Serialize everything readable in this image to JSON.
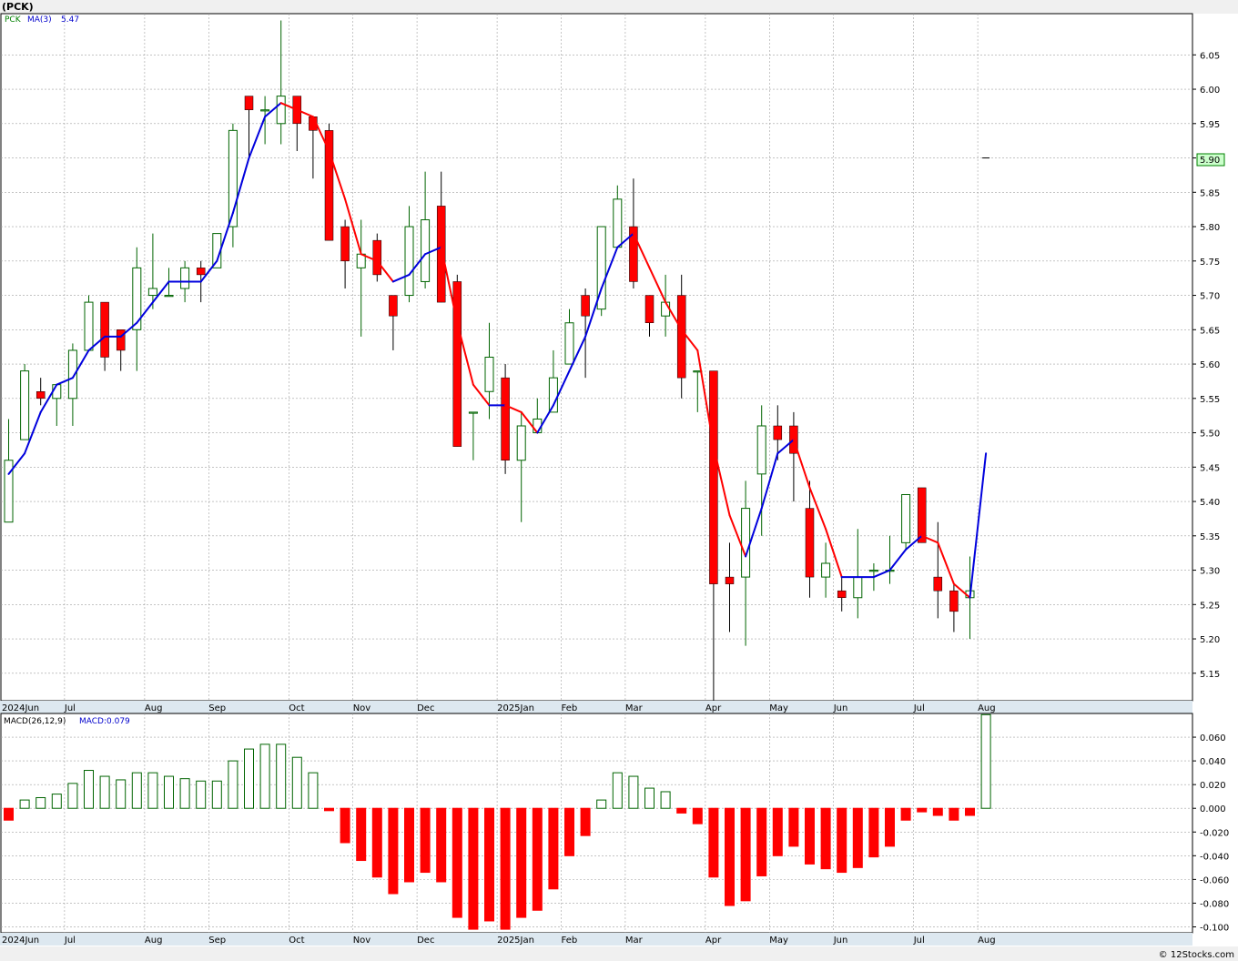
{
  "title": "(PCK)",
  "legend": {
    "symbol": "PCK",
    "ma_label": "MA(3)",
    "ma_value": "5.47",
    "macd_label": "MACD(26,12,9)",
    "macd_value": "MACD:0.079"
  },
  "current_price_label": "5.90",
  "copyright": "© 12Stocks.com",
  "colors": {
    "up_candle": "#ffffff",
    "up_wick": "#006400",
    "down_candle": "#ff0000",
    "ma_up": "#0000dd",
    "ma_down": "#ff0000",
    "grid": "#a0a0a0",
    "price_tag_bg": "#ccffcc"
  },
  "chart_data": [
    {
      "type": "candlestick",
      "name": "price",
      "ylim": [
        5.11,
        6.11
      ],
      "y_ticks": [
        5.15,
        5.2,
        5.25,
        5.3,
        5.35,
        5.4,
        5.45,
        5.5,
        5.55,
        5.6,
        5.65,
        5.7,
        5.75,
        5.8,
        5.85,
        5.9,
        5.95,
        6.0,
        6.05
      ],
      "x_labels": [
        "2024Jun",
        "Jul",
        "Aug",
        "Sep",
        "Oct",
        "Nov",
        "Dec",
        "2025Jan",
        "Feb",
        "Mar",
        "Apr",
        "May",
        "Jun",
        "Jul",
        "Aug"
      ],
      "x_label_week_index": [
        0,
        4,
        9,
        13,
        18,
        22,
        26,
        31,
        35,
        39,
        44,
        48,
        52,
        57,
        61
      ],
      "grid": true,
      "ohlc": [
        [
          5.37,
          5.52,
          5.37,
          5.46
        ],
        [
          5.49,
          5.6,
          5.49,
          5.59
        ],
        [
          5.56,
          5.58,
          5.54,
          5.55
        ],
        [
          5.55,
          5.57,
          5.51,
          5.57
        ],
        [
          5.55,
          5.63,
          5.51,
          5.62
        ],
        [
          5.62,
          5.7,
          5.62,
          5.69
        ],
        [
          5.69,
          5.69,
          5.59,
          5.61
        ],
        [
          5.65,
          5.65,
          5.59,
          5.62
        ],
        [
          5.65,
          5.77,
          5.59,
          5.74
        ],
        [
          5.7,
          5.79,
          5.68,
          5.71
        ],
        [
          5.7,
          5.74,
          5.7,
          5.7
        ],
        [
          5.71,
          5.75,
          5.69,
          5.74
        ],
        [
          5.74,
          5.75,
          5.69,
          5.73
        ],
        [
          5.74,
          5.79,
          5.74,
          5.79
        ],
        [
          5.8,
          5.95,
          5.77,
          5.94
        ],
        [
          5.99,
          5.99,
          5.9,
          5.97
        ],
        [
          5.97,
          5.99,
          5.92,
          5.97
        ],
        [
          5.95,
          6.1,
          5.92,
          5.99
        ],
        [
          5.99,
          5.99,
          5.91,
          5.95
        ],
        [
          5.96,
          5.96,
          5.87,
          5.94
        ],
        [
          5.94,
          5.95,
          5.78,
          5.78
        ],
        [
          5.8,
          5.81,
          5.71,
          5.75
        ],
        [
          5.74,
          5.81,
          5.64,
          5.76
        ],
        [
          5.78,
          5.79,
          5.72,
          5.73
        ],
        [
          5.7,
          5.7,
          5.62,
          5.67
        ],
        [
          5.7,
          5.83,
          5.69,
          5.8
        ],
        [
          5.72,
          5.88,
          5.71,
          5.81
        ],
        [
          5.83,
          5.88,
          5.69,
          5.69
        ],
        [
          5.72,
          5.73,
          5.48,
          5.48
        ],
        [
          5.53,
          5.53,
          5.46,
          5.53
        ],
        [
          5.56,
          5.66,
          5.52,
          5.61
        ],
        [
          5.58,
          5.6,
          5.44,
          5.46
        ],
        [
          5.46,
          5.53,
          5.37,
          5.51
        ],
        [
          5.5,
          5.55,
          5.5,
          5.52
        ],
        [
          5.53,
          5.62,
          5.53,
          5.58
        ],
        [
          5.6,
          5.68,
          5.6,
          5.66
        ],
        [
          5.7,
          5.71,
          5.58,
          5.67
        ],
        [
          5.68,
          5.8,
          5.67,
          5.8
        ],
        [
          5.77,
          5.86,
          5.77,
          5.84
        ],
        [
          5.8,
          5.87,
          5.71,
          5.72
        ],
        [
          5.7,
          5.7,
          5.64,
          5.66
        ],
        [
          5.67,
          5.73,
          5.64,
          5.69
        ],
        [
          5.7,
          5.73,
          5.55,
          5.58
        ],
        [
          5.59,
          5.59,
          5.53,
          5.59
        ],
        [
          5.59,
          5.59,
          5.11,
          5.28
        ],
        [
          5.29,
          5.34,
          5.21,
          5.28
        ],
        [
          5.29,
          5.43,
          5.19,
          5.39
        ],
        [
          5.44,
          5.54,
          5.35,
          5.51
        ],
        [
          5.51,
          5.54,
          5.46,
          5.49
        ],
        [
          5.51,
          5.53,
          5.4,
          5.47
        ],
        [
          5.39,
          5.43,
          5.26,
          5.29
        ],
        [
          5.29,
          5.34,
          5.26,
          5.31
        ],
        [
          5.27,
          5.29,
          5.24,
          5.26
        ],
        [
          5.26,
          5.36,
          5.23,
          5.29
        ],
        [
          5.3,
          5.31,
          5.27,
          5.3
        ],
        [
          5.3,
          5.35,
          5.28,
          5.3
        ],
        [
          5.34,
          5.41,
          5.33,
          5.41
        ],
        [
          5.42,
          5.42,
          5.34,
          5.34
        ],
        [
          5.29,
          5.37,
          5.23,
          5.27
        ],
        [
          5.27,
          5.28,
          5.21,
          5.24
        ],
        [
          5.26,
          5.32,
          5.2,
          5.27
        ],
        [
          5.9,
          5.9,
          5.9,
          5.9
        ]
      ],
      "ma3": [
        5.44,
        5.47,
        5.53,
        5.57,
        5.58,
        5.62,
        5.64,
        5.64,
        5.66,
        5.69,
        5.72,
        5.72,
        5.72,
        5.75,
        5.82,
        5.9,
        5.96,
        5.98,
        5.97,
        5.96,
        5.91,
        5.84,
        5.76,
        5.75,
        5.72,
        5.73,
        5.76,
        5.77,
        5.66,
        5.57,
        5.54,
        5.54,
        5.53,
        5.5,
        5.54,
        5.59,
        5.64,
        5.71,
        5.77,
        5.79,
        5.74,
        5.69,
        5.65,
        5.62,
        5.48,
        5.38,
        5.32,
        5.39,
        5.47,
        5.49,
        5.42,
        5.36,
        5.29,
        5.29,
        5.29,
        5.3,
        5.33,
        5.35,
        5.34,
        5.28,
        5.26,
        5.47
      ]
    },
    {
      "type": "bar",
      "name": "MACD(26,12,9)",
      "ylim": [
        -0.105,
        0.08
      ],
      "y_ticks": [
        -0.1,
        -0.08,
        -0.06,
        -0.04,
        -0.02,
        0.0,
        0.02,
        0.04,
        0.06
      ],
      "y_tick_labels": [
        "-0.100",
        "-0.080",
        "-0.060",
        "-0.040",
        "-0.020",
        "0.000",
        "0.020",
        "0.040",
        "0.060"
      ],
      "x_labels": [
        "2024Jun",
        "Jul",
        "Aug",
        "Sep",
        "Oct",
        "Nov",
        "Dec",
        "2025Jan",
        "Feb",
        "Mar",
        "Apr",
        "May",
        "Jun",
        "Jul",
        "Aug"
      ],
      "grid": true,
      "values": [
        -0.01,
        0.007,
        0.009,
        0.012,
        0.021,
        0.032,
        0.027,
        0.024,
        0.03,
        0.03,
        0.027,
        0.025,
        0.023,
        0.023,
        0.04,
        0.05,
        0.054,
        0.054,
        0.043,
        0.03,
        -0.002,
        -0.029,
        -0.044,
        -0.058,
        -0.072,
        -0.062,
        -0.054,
        -0.062,
        -0.092,
        -0.102,
        -0.095,
        -0.102,
        -0.092,
        -0.086,
        -0.068,
        -0.04,
        -0.023,
        0.007,
        0.03,
        0.027,
        0.017,
        0.014,
        -0.004,
        -0.013,
        -0.058,
        -0.082,
        -0.078,
        -0.057,
        -0.04,
        -0.032,
        -0.047,
        -0.051,
        -0.054,
        -0.05,
        -0.041,
        -0.032,
        -0.01,
        -0.003,
        -0.006,
        -0.01,
        -0.006,
        0.079
      ]
    }
  ]
}
